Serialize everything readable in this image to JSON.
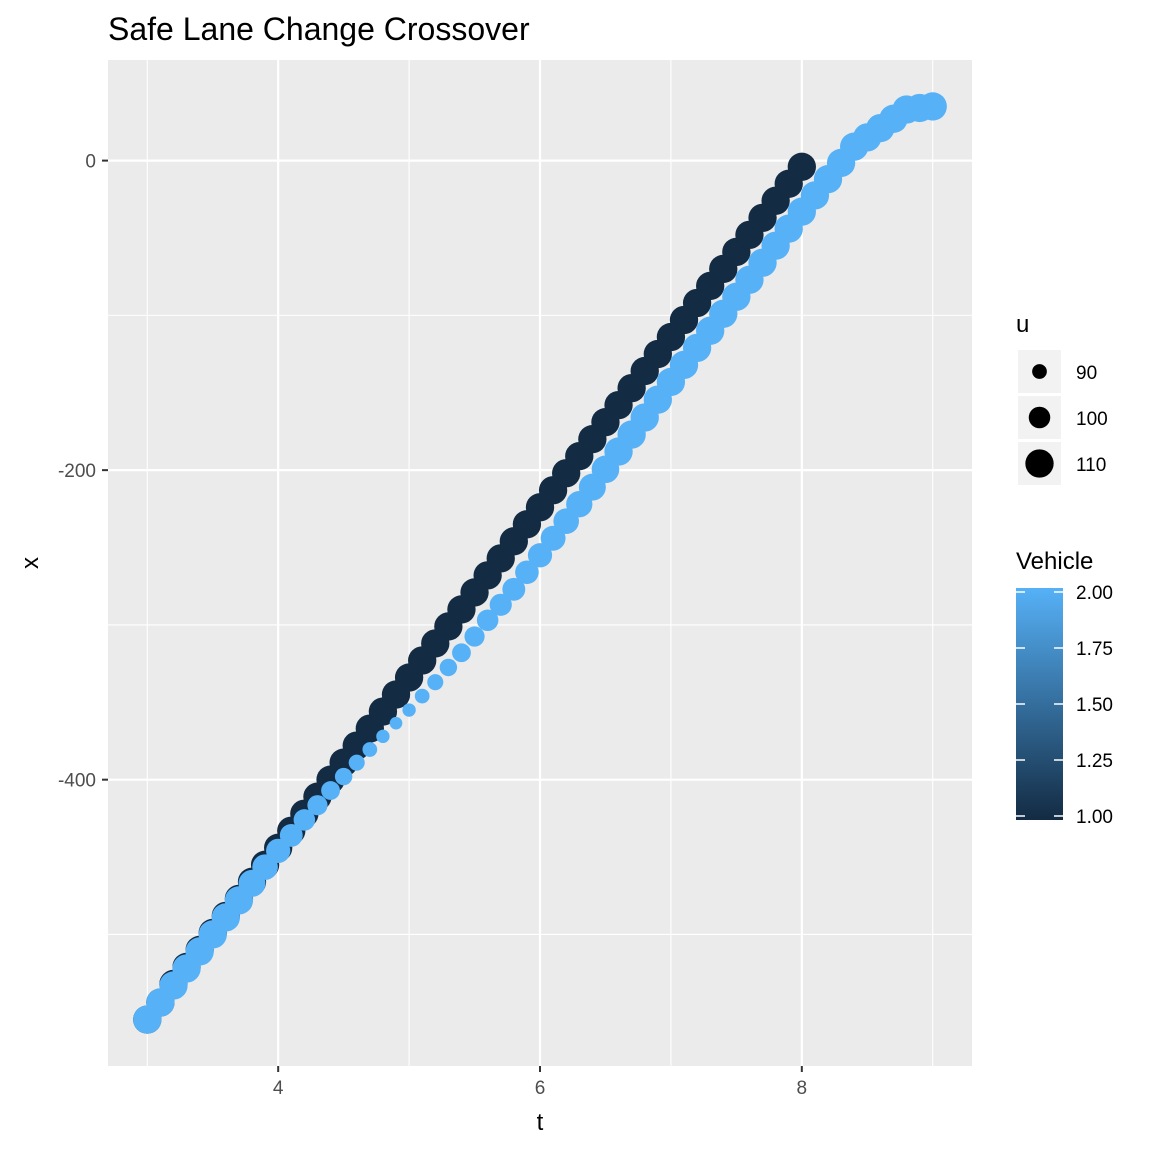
{
  "chart_data": {
    "type": "scatter",
    "title": "Safe Lane Change Crossover",
    "xlabel": "t",
    "ylabel": "x",
    "xlim": [
      2.7,
      9.3
    ],
    "ylim": [
      -585,
      65
    ],
    "x_ticks": [
      4,
      6,
      8
    ],
    "y_ticks": [
      0,
      -200,
      -400
    ],
    "x_tick_labels": [
      "4",
      "6",
      "8"
    ],
    "y_tick_labels": [
      "0",
      "-200",
      "-400"
    ],
    "grid": true,
    "legend_position": "right",
    "size_legend": {
      "title": "u",
      "entries": [
        {
          "label": "90",
          "value": 90
        },
        {
          "label": "100",
          "value": 100
        },
        {
          "label": "110",
          "value": 110
        }
      ]
    },
    "color_legend": {
      "title": "Vehicle",
      "min": 1.0,
      "max": 2.0,
      "breaks": [
        1.0,
        1.25,
        1.5,
        1.75,
        2.0
      ],
      "labels": [
        "1.00",
        "1.25",
        "1.50",
        "1.75",
        "2.00"
      ],
      "low_color": "#132B43",
      "high_color": "#56B1F7"
    },
    "series": [
      {
        "vehicle": 1,
        "t": [
          3.0,
          3.1,
          3.2,
          3.3,
          3.4,
          3.5,
          3.6,
          3.7,
          3.8,
          3.9,
          4.0,
          4.1,
          4.2,
          4.3,
          4.4,
          4.5,
          4.6,
          4.7,
          4.8,
          4.9,
          5.0,
          5.1,
          5.2,
          5.3,
          5.4,
          5.5,
          5.6,
          5.7,
          5.8,
          5.9,
          6.0,
          6.1,
          6.2,
          6.3,
          6.4,
          6.5,
          6.6,
          6.7,
          6.8,
          6.9,
          7.0,
          7.1,
          7.2,
          7.3,
          7.4,
          7.5,
          7.6,
          7.7,
          7.8,
          7.9,
          8.0
        ],
        "x": [
          -555.0,
          -544.0,
          -532.0,
          -521.0,
          -510.0,
          -499.0,
          -488.0,
          -477.0,
          -466.0,
          -455.0,
          -444.0,
          -433.0,
          -422.0,
          -411.0,
          -400.0,
          -389.0,
          -378.0,
          -367.0,
          -356.0,
          -345.0,
          -334.0,
          -323.0,
          -312.0,
          -301.0,
          -290.0,
          -279.0,
          -268.0,
          -257.0,
          -246.0,
          -235.0,
          -224.0,
          -213.0,
          -202.0,
          -191.0,
          -180.0,
          -169.0,
          -158.0,
          -147.0,
          -136.0,
          -125.0,
          -114.0,
          -103.0,
          -92.0,
          -81.0,
          -70.0,
          -59.0,
          -48.0,
          -37.0,
          -26.0,
          -15.0,
          -4.0
        ],
        "u": [
          110,
          110,
          110,
          110,
          110,
          110,
          110,
          110,
          110,
          110,
          110,
          110,
          110,
          110,
          110,
          110,
          110,
          110,
          110,
          110,
          110,
          110,
          110,
          110,
          110,
          110,
          110,
          110,
          110,
          110,
          110,
          110,
          110,
          110,
          110,
          110,
          110,
          110,
          110,
          110,
          110,
          110,
          110,
          110,
          110,
          110,
          110,
          110,
          110,
          110,
          110
        ]
      },
      {
        "vehicle": 2,
        "t": [
          3.0,
          3.1,
          3.2,
          3.3,
          3.4,
          3.5,
          3.6,
          3.7,
          3.8,
          3.9,
          4.0,
          4.1,
          4.2,
          4.3,
          4.4,
          4.5,
          4.6,
          4.7,
          4.8,
          4.9,
          5.0,
          5.1,
          5.2,
          5.3,
          5.4,
          5.5,
          5.6,
          5.7,
          5.8,
          5.9,
          6.0,
          6.1,
          6.2,
          6.3,
          6.4,
          6.5,
          6.6,
          6.7,
          6.8,
          6.9,
          7.0,
          7.1,
          7.2,
          7.3,
          7.4,
          7.5,
          7.6,
          7.7,
          7.8,
          7.9,
          8.0,
          8.1,
          8.2,
          8.3,
          8.4,
          8.5,
          8.6,
          8.7,
          8.8,
          8.9,
          9.0
        ],
        "x": [
          -555.0,
          -544.0,
          -533.0,
          -522.0,
          -511.0,
          -500.0,
          -489.0,
          -478.0,
          -467.0,
          -456.5,
          -446.0,
          -436.0,
          -426.0,
          -416.5,
          -407.0,
          -398.0,
          -389.0,
          -380.5,
          -372.0,
          -363.5,
          -355.0,
          -346.0,
          -337.0,
          -327.5,
          -318.0,
          -307.5,
          -297.0,
          -287.0,
          -277.0,
          -266.0,
          -255.0,
          -244.0,
          -233.0,
          -222.0,
          -211.0,
          -199.5,
          -188.0,
          -177.0,
          -166.0,
          -154.5,
          -143.0,
          -132.0,
          -121.0,
          -110.0,
          -99.0,
          -88.0,
          -77.0,
          -66.0,
          -55.0,
          -44.0,
          -33.0,
          -22.5,
          -12.0,
          -1.5,
          9.0,
          15.0,
          21.0,
          27.0,
          33.0,
          34.0,
          35.0
        ],
        "u": [
          110,
          110,
          110,
          110,
          110,
          110,
          110,
          110,
          108,
          106,
          104,
          102,
          100,
          98,
          96,
          94,
          92,
          90,
          88,
          87,
          88,
          90,
          92,
          94,
          96,
          98,
          100,
          101,
          102,
          103,
          104,
          105,
          106,
          107,
          108,
          109,
          110,
          110,
          110,
          110,
          110,
          110,
          110,
          110,
          110,
          110,
          110,
          110,
          110,
          110,
          110,
          110,
          110,
          110,
          110,
          110,
          110,
          110,
          110,
          110,
          110
        ]
      }
    ]
  }
}
